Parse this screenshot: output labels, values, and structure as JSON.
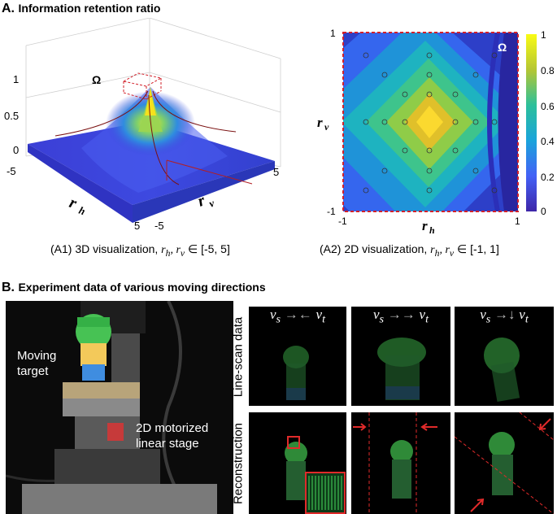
{
  "section_a": {
    "letter": "A.",
    "title": "Information retention ratio",
    "plot3d": {
      "omega": "Ω",
      "z_ticks": [
        "1",
        "0.5",
        "0"
      ],
      "rh_ticks": [
        "-5",
        "5"
      ],
      "rv_ticks": [
        "-5",
        "5"
      ],
      "rh_label": "r",
      "rh_sub": "h",
      "rv_label": "r",
      "rv_sub": "v",
      "caption_prefix": "(A1) 3D visualization, ",
      "caption_var": "r",
      "caption_sub1": "h",
      "caption_sep": ", r",
      "caption_sub2": "v",
      "caption_suffix": " ∈ [-5, 5]"
    },
    "plot2d": {
      "omega": "Ω",
      "x_ticks": [
        "-1",
        "1"
      ],
      "y_ticks": [
        "1",
        "-1"
      ],
      "colorbar_ticks": [
        "1",
        "0.8",
        "0.6",
        "0.4",
        "0.2",
        "0"
      ],
      "rh_label": "r",
      "rh_sub": "h",
      "rv_label": "r",
      "rv_sub": "v",
      "caption_prefix": "(A2) 2D visualization, ",
      "caption_var": "r",
      "caption_sub1": "h",
      "caption_sep": ", r",
      "caption_sub2": "v",
      "caption_suffix": " ∈ [-1, 1]"
    }
  },
  "section_b": {
    "letter": "B.",
    "title": "Experiment data of various moving directions",
    "photo": {
      "moving_target": [
        "Moving",
        "target"
      ],
      "stage": [
        "2D motorized",
        "linear stage"
      ]
    },
    "row_labels": [
      "Line-scan data",
      "Reconstruction"
    ],
    "vs": "v",
    "vs_sub": "s",
    "vt": "v",
    "vt_sub": "t",
    "arrow_glyphs": [
      "→←",
      "→→",
      "→↓"
    ]
  },
  "colors": {
    "surface_blue": "#3a3fd8",
    "peak_yellow": "#f9e61f",
    "dashed_red": "#d2202a",
    "panel_bg": "#000000",
    "scene_green": "#2a8a3a"
  }
}
